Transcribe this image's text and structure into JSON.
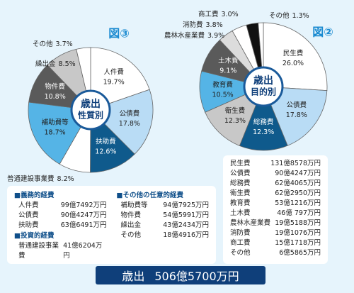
{
  "chart_data": [
    {
      "type": "pie",
      "figure": "図③",
      "center_label": [
        "歳出",
        "性質別"
      ],
      "categories": [
        "人件費",
        "公債費",
        "扶助費",
        "普通建設事業費",
        "補助費等",
        "物件費",
        "繰出金",
        "その他"
      ],
      "values": [
        19.7,
        17.8,
        12.6,
        8.2,
        18.7,
        10.8,
        8.5,
        3.7
      ],
      "value_labels": [
        "19.7%",
        "17.8%",
        "12.6%",
        "8.2%",
        "18.7%",
        "10.8%",
        "8.5%",
        "3.7%"
      ],
      "colors": [
        "#ffffff",
        "#b9dcf5",
        "#0f5a8c",
        "#ffffff",
        "#55b4e6",
        "#5a5a5a",
        "#c8c8c8",
        "#ffffff"
      ]
    },
    {
      "type": "pie",
      "figure": "図②",
      "center_label": [
        "歳出",
        "目的別"
      ],
      "categories": [
        "民生費",
        "公債費",
        "総務費",
        "衛生費",
        "教育費",
        "土木費",
        "農林水産業費",
        "消防費",
        "商工費",
        "その他"
      ],
      "values": [
        26.0,
        17.8,
        12.3,
        12.3,
        10.5,
        9.1,
        3.9,
        3.8,
        3.0,
        1.3
      ],
      "value_labels": [
        "26.0%",
        "17.8%",
        "12.3%",
        "12.3%",
        "10.5%",
        "9.1%",
        "3.9%",
        "3.8%",
        "3.0%",
        "1.3%"
      ],
      "colors": [
        "#ffffff",
        "#b9dcf5",
        "#0f5a8c",
        "#c8c8c8",
        "#55b4e6",
        "#5a5a5a",
        "#dcdcdc",
        "#ffffff",
        "#111111",
        "#ffffff"
      ]
    }
  ],
  "tables": {
    "nature": [
      {
        "heading": "■義務的経費",
        "rows": [
          [
            "人件費",
            "99億7492万円"
          ],
          [
            "公債費",
            "90億4247万円"
          ],
          [
            "扶助費",
            "63億6491万円"
          ]
        ]
      },
      {
        "heading": "■投資的経費",
        "rows": [
          [
            "普通建設事業費",
            "41億6204万円"
          ]
        ]
      },
      {
        "heading": "■その他の任意的経費",
        "rows": [
          [
            "補助費等",
            "94億7925万円"
          ],
          [
            "物件費",
            "54億5991万円"
          ],
          [
            "繰出金",
            "43億2434万円"
          ],
          [
            "その他",
            "18億4916万円"
          ]
        ]
      }
    ],
    "purpose": [
      [
        "民生費",
        "131億8578万円"
      ],
      [
        "公債費",
        "90億4247万円"
      ],
      [
        "総務費",
        "62億4065万円"
      ],
      [
        "衛生費",
        "62億2950万円"
      ],
      [
        "教育費",
        "53億1216万円"
      ],
      [
        "土木費",
        "46億 797万円"
      ],
      [
        "農林水産業費",
        "19億5188万円"
      ],
      [
        "消防費",
        "19億1076万円"
      ],
      [
        "商工費",
        "15億1718万円"
      ],
      [
        "その他",
        "6億5865万円"
      ]
    ]
  },
  "total": {
    "label": "歳出",
    "amount": "506億5700万円"
  }
}
